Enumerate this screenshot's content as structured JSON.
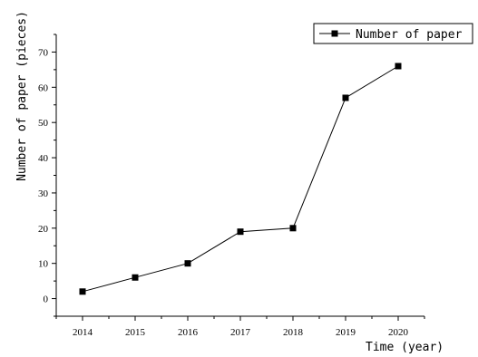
{
  "chart_data": {
    "type": "line",
    "title": "",
    "xlabel": "Time (year)",
    "ylabel": "Number of paper (pieces)",
    "x": [
      2014,
      2015,
      2016,
      2017,
      2018,
      2019,
      2020
    ],
    "xticks": [
      "2014",
      "2015",
      "2016",
      "2017",
      "2018",
      "2019",
      "2020"
    ],
    "xlim": [
      2013.5,
      2020.5
    ],
    "ylim": [
      -5,
      75
    ],
    "yticks": [
      0,
      10,
      20,
      30,
      40,
      50,
      60,
      70
    ],
    "grid": false,
    "legend_position": "top-right",
    "series": [
      {
        "name": "Number of paper",
        "values": [
          2,
          6,
          10,
          19,
          20,
          57,
          66
        ],
        "marker": "square",
        "color": "#000000"
      }
    ]
  }
}
